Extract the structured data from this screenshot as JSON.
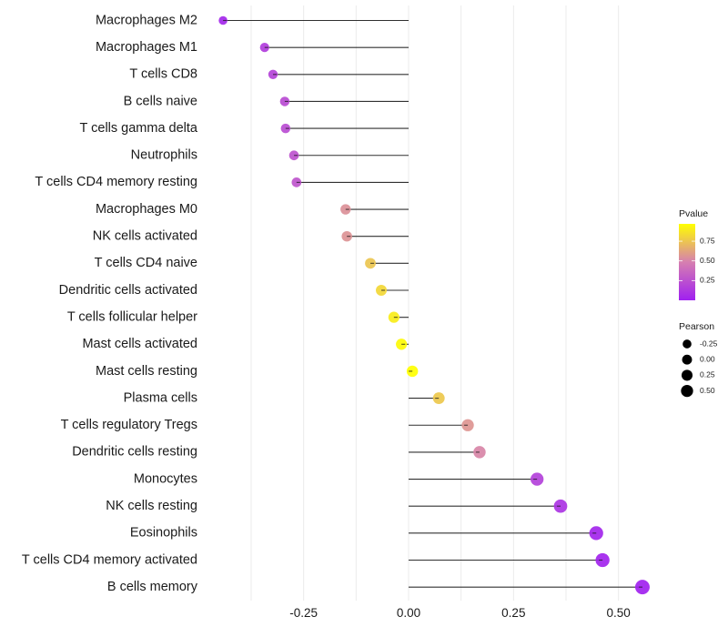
{
  "chart_data": {
    "type": "lollipop",
    "title": "",
    "xlabel": "",
    "ylabel": "",
    "xlim": [
      -0.5,
      0.575
    ],
    "x_ticks": [
      -0.25,
      0.0,
      0.25,
      0.5
    ],
    "x_tick_labels": [
      "-0.25",
      "0.00",
      "0.25",
      "0.50"
    ],
    "minor_grid": [
      -0.375,
      -0.125,
      0.125,
      0.375
    ],
    "grid": true,
    "categories": [
      "Macrophages M2",
      "Macrophages M1",
      "T cells CD8",
      "B cells naive",
      "T cells gamma delta",
      "Neutrophils",
      "T cells CD4 memory resting",
      "Macrophages M0",
      "NK cells activated",
      "T cells CD4 naive",
      "Dendritic cells activated",
      "T cells follicular helper",
      "Mast cells activated",
      "Mast cells resting",
      "Plasma cells",
      "T cells regulatory  Tregs",
      "Dendritic cells resting",
      "Monocytes",
      "NK cells resting",
      "Eosinophils",
      "T cells CD4 memory activated",
      "B cells memory"
    ],
    "pearson": [
      -0.442,
      -0.343,
      -0.323,
      -0.295,
      -0.293,
      -0.273,
      -0.267,
      -0.15,
      -0.147,
      -0.091,
      -0.065,
      -0.035,
      -0.017,
      0.009,
      0.072,
      0.141,
      0.169,
      0.306,
      0.362,
      0.447,
      0.462,
      0.557
    ],
    "pvalue": [
      0.04,
      0.15,
      0.18,
      0.22,
      0.23,
      0.26,
      0.27,
      0.55,
      0.56,
      0.75,
      0.82,
      0.9,
      0.95,
      0.97,
      0.76,
      0.57,
      0.51,
      0.17,
      0.1,
      0.03,
      0.02,
      0.01
    ],
    "color_legend": {
      "title": "Pvalue",
      "range": [
        0.0,
        0.97
      ],
      "ticks": [
        0.25,
        0.5,
        0.75
      ],
      "tick_labels": [
        "0.25",
        "0.50",
        "0.75"
      ],
      "low_color": "#a020f0",
      "mid_color": "#d67fb0",
      "high_color": "#ffff00",
      "placement": "right"
    },
    "size_legend": {
      "title": "Pearson",
      "values": [
        -0.25,
        0.0,
        0.25,
        0.5
      ],
      "labels": [
        "-0.25",
        "0.00",
        "0.25",
        "0.50"
      ],
      "placement": "right"
    }
  }
}
